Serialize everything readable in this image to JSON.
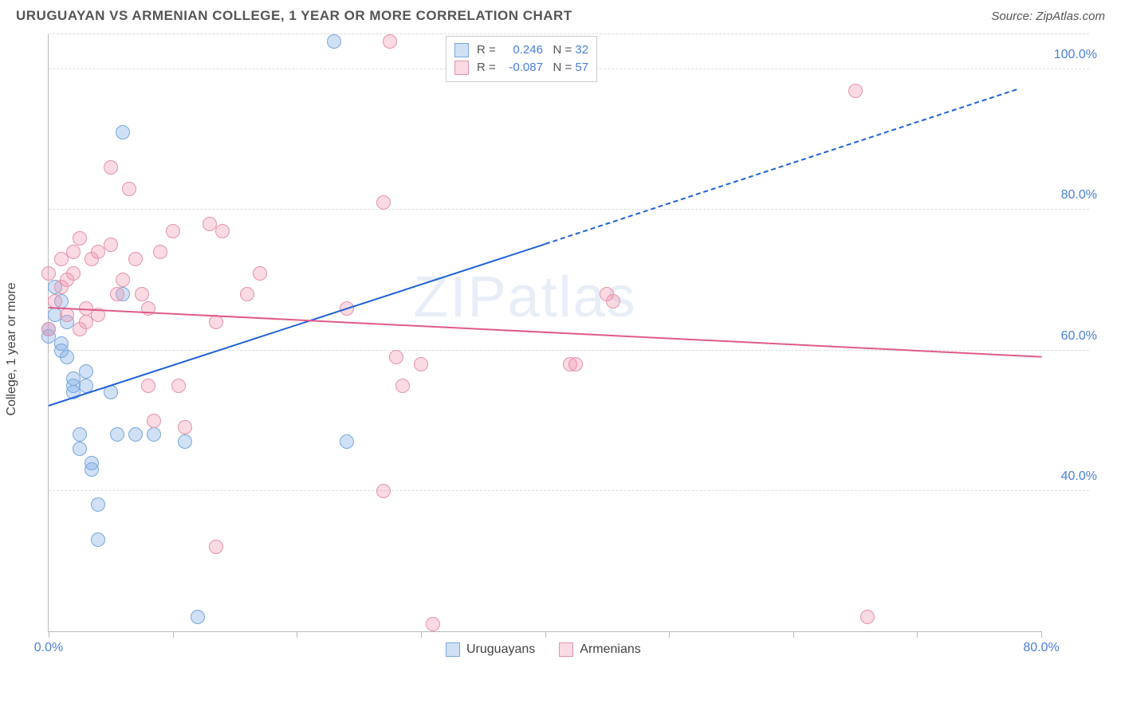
{
  "header": {
    "title": "URUGUAYAN VS ARMENIAN COLLEGE, 1 YEAR OR MORE CORRELATION CHART",
    "source_prefix": "Source: ",
    "source_name": "ZipAtlas.com"
  },
  "chart": {
    "type": "scatter",
    "y_axis_label": "College, 1 year or more",
    "watermark": "ZIPatlas",
    "background_color": "#ffffff",
    "grid_color": "#dcdcdc",
    "axis_color": "#bbbbbb",
    "xlim": [
      0,
      80
    ],
    "ylim": [
      20,
      105
    ],
    "x_ticks": [
      0,
      10,
      20,
      30,
      40,
      50,
      60,
      70,
      80
    ],
    "x_tick_labels": {
      "0": "0.0%",
      "80": "80.0%"
    },
    "y_gridlines": [
      40,
      60,
      80,
      100,
      105
    ],
    "y_tick_labels": {
      "40": "40.0%",
      "60": "60.0%",
      "80": "80.0%",
      "100": "100.0%"
    },
    "series": [
      {
        "name": "Uruguayans",
        "color_fill": "rgba(120,170,230,0.35)",
        "color_stroke": "#7aa6dd",
        "trend_color": "#1f62d6",
        "marker_radius": 9,
        "R": "0.246",
        "N": "32",
        "trend": {
          "x1": 0,
          "y1": 52,
          "x2": 40,
          "y2": 75,
          "x2_ext": 78,
          "y2_ext": 97
        },
        "points": [
          [
            0,
            63
          ],
          [
            0,
            62
          ],
          [
            0.5,
            69
          ],
          [
            0.5,
            65
          ],
          [
            1,
            67
          ],
          [
            1,
            61
          ],
          [
            1,
            60
          ],
          [
            1.5,
            59
          ],
          [
            1.5,
            64
          ],
          [
            2,
            56
          ],
          [
            2,
            55
          ],
          [
            2,
            54
          ],
          [
            2.5,
            46
          ],
          [
            2.5,
            48
          ],
          [
            3,
            55
          ],
          [
            3,
            57
          ],
          [
            3.5,
            43
          ],
          [
            3.5,
            44
          ],
          [
            4,
            38
          ],
          [
            4,
            33
          ],
          [
            5,
            54
          ],
          [
            5.5,
            48
          ],
          [
            6,
            91
          ],
          [
            6,
            68
          ],
          [
            7,
            48
          ],
          [
            8.5,
            48
          ],
          [
            11,
            47
          ],
          [
            12,
            22
          ],
          [
            24,
            47
          ],
          [
            23,
            104
          ]
        ]
      },
      {
        "name": "Armenians",
        "color_fill": "rgba(240,150,175,0.35)",
        "color_stroke": "#e593aa",
        "trend_color": "#e05a8a",
        "marker_radius": 9,
        "R": "-0.087",
        "N": "57",
        "trend": {
          "x1": 0,
          "y1": 66,
          "x2": 80,
          "y2": 59
        },
        "points": [
          [
            0,
            71
          ],
          [
            0,
            63
          ],
          [
            0.5,
            67
          ],
          [
            1,
            69
          ],
          [
            1,
            73
          ],
          [
            1.5,
            65
          ],
          [
            1.5,
            70
          ],
          [
            2,
            71
          ],
          [
            2,
            74
          ],
          [
            2.5,
            63
          ],
          [
            2.5,
            76
          ],
          [
            3,
            66
          ],
          [
            3,
            64
          ],
          [
            3.5,
            73
          ],
          [
            4,
            74
          ],
          [
            4,
            65
          ],
          [
            5,
            86
          ],
          [
            5,
            75
          ],
          [
            5.5,
            68
          ],
          [
            6,
            70
          ],
          [
            6.5,
            83
          ],
          [
            7,
            73
          ],
          [
            7.5,
            68
          ],
          [
            8,
            66
          ],
          [
            8,
            55
          ],
          [
            8.5,
            50
          ],
          [
            9,
            74
          ],
          [
            10,
            77
          ],
          [
            10.5,
            55
          ],
          [
            11,
            49
          ],
          [
            13,
            78
          ],
          [
            13.5,
            64
          ],
          [
            13.5,
            32
          ],
          [
            14,
            77
          ],
          [
            16,
            68
          ],
          [
            17,
            71
          ],
          [
            24,
            66
          ],
          [
            27,
            81
          ],
          [
            27,
            40
          ],
          [
            27.5,
            104
          ],
          [
            28,
            59
          ],
          [
            28.5,
            55
          ],
          [
            30,
            58
          ],
          [
            31,
            21
          ],
          [
            45,
            68
          ],
          [
            45.5,
            67
          ],
          [
            42,
            58
          ],
          [
            42.5,
            58
          ],
          [
            65,
            97
          ],
          [
            66,
            22
          ]
        ]
      }
    ],
    "legend_top": {
      "r_prefix": "R =",
      "n_prefix": "N =",
      "text_color": "#555555",
      "value_color": "#4a7fd8"
    },
    "label_color": "#4a7fd8"
  },
  "legend_bottom": {
    "items": [
      "Uruguayans",
      "Armenians"
    ]
  }
}
